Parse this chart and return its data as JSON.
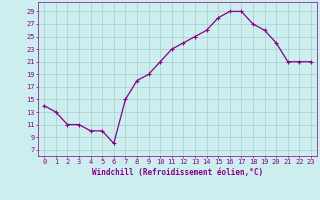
{
  "x": [
    0,
    1,
    2,
    3,
    4,
    5,
    6,
    7,
    8,
    9,
    10,
    11,
    12,
    13,
    14,
    15,
    16,
    17,
    18,
    19,
    20,
    21,
    22,
    23
  ],
  "y": [
    14,
    13,
    11,
    11,
    10,
    10,
    8,
    15,
    18,
    19,
    21,
    23,
    24,
    25,
    26,
    28,
    29,
    29,
    27,
    26,
    24,
    21,
    21,
    21
  ],
  "line_color": "#880088",
  "marker": "+",
  "marker_size": 3.5,
  "marker_lw": 0.8,
  "bg_color": "#cceeee",
  "grid_color": "#aacccc",
  "xlabel": "Windchill (Refroidissement éolien,°C)",
  "xlabel_color": "#880088",
  "ylabel_ticks": [
    7,
    9,
    11,
    13,
    15,
    17,
    19,
    21,
    23,
    25,
    27,
    29
  ],
  "ylim": [
    6.0,
    30.5
  ],
  "xlim": [
    -0.5,
    23.5
  ],
  "tick_color": "#880088",
  "line_width": 0.9,
  "marker_color": "#880088",
  "xlabel_fontsize": 5.5,
  "tick_fontsize": 5.0
}
